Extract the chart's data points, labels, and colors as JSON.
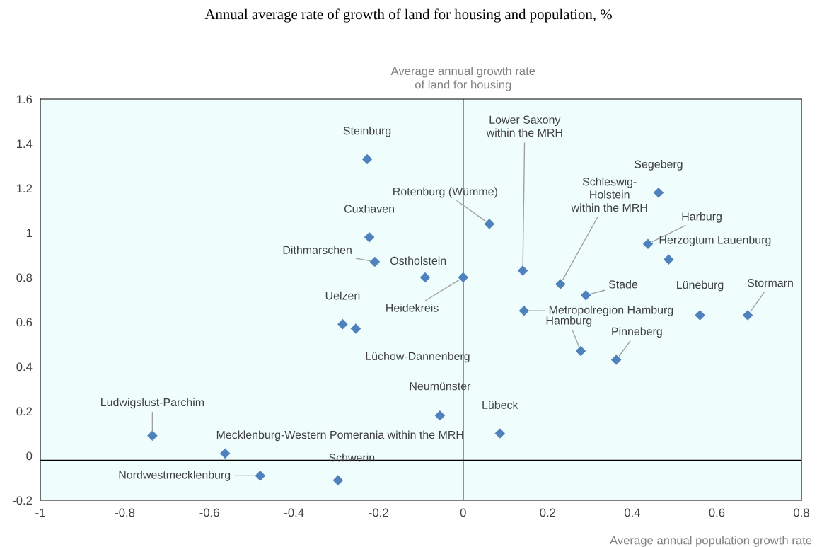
{
  "chart_data": {
    "type": "scatter",
    "title": "Annual average rate of growth of land for housing and population, %",
    "xlabel": "Average annual population growth rate",
    "ylabel": "Average annual growth rate\nof land for housing",
    "x": [
      -0.227,
      -0.222,
      -0.209,
      -0.09,
      0.0,
      0.062,
      -0.285,
      -0.254,
      0.141,
      0.23,
      0.29,
      0.144,
      0.278,
      0.362,
      0.462,
      0.437,
      0.486,
      0.56,
      0.673,
      -0.055,
      0.087,
      -0.735,
      -0.563,
      -0.48,
      -0.296
    ],
    "series": [
      {
        "color": "#4f81bd",
        "values": [
          1.33,
          0.98,
          0.87,
          0.8,
          0.8,
          1.04,
          0.59,
          0.57,
          0.83,
          0.77,
          0.72,
          0.65,
          0.47,
          0.43,
          1.18,
          0.95,
          0.88,
          0.63,
          0.63,
          0.18,
          0.1,
          0.09,
          0.01,
          -0.09,
          -0.11
        ]
      }
    ],
    "marker": "diamond",
    "annotations": [
      {
        "text": "Steinburg",
        "x": -0.227,
        "y": 1.33
      },
      {
        "text": "Cuxhaven",
        "x": -0.222,
        "y": 0.98
      },
      {
        "text": "Dithmarschen",
        "x": -0.209,
        "y": 0.87
      },
      {
        "text": "Ostholstein",
        "x": -0.09,
        "y": 0.8
      },
      {
        "text": "Heidekreis",
        "x": 0.0,
        "y": 0.8
      },
      {
        "text": "Rotenburg (Wümme)",
        "x": 0.062,
        "y": 1.04
      },
      {
        "text": "Uelzen",
        "x": -0.285,
        "y": 0.59
      },
      {
        "text": "Lüchow-Dannenberg",
        "x": -0.254,
        "y": 0.57
      },
      {
        "text": "Lower Saxony\nwithin the MRH",
        "x": 0.141,
        "y": 0.83
      },
      {
        "text": "Schleswig-\nHolstein\nwithin the MRH",
        "x": 0.23,
        "y": 0.77
      },
      {
        "text": "Stade",
        "x": 0.29,
        "y": 0.72
      },
      {
        "text": "Metropolregion Hamburg",
        "x": 0.144,
        "y": 0.65
      },
      {
        "text": "Hamburg",
        "x": 0.278,
        "y": 0.47
      },
      {
        "text": "Pinneberg",
        "x": 0.362,
        "y": 0.43
      },
      {
        "text": "Segeberg",
        "x": 0.462,
        "y": 1.18
      },
      {
        "text": "Harburg",
        "x": 0.437,
        "y": 0.95
      },
      {
        "text": "Herzogtum Lauenburg",
        "x": 0.486,
        "y": 0.88
      },
      {
        "text": "Lüneburg",
        "x": 0.56,
        "y": 0.63
      },
      {
        "text": "Stormarn",
        "x": 0.673,
        "y": 0.63
      },
      {
        "text": "Neumünster",
        "x": -0.055,
        "y": 0.18
      },
      {
        "text": "Lübeck",
        "x": 0.087,
        "y": 0.1
      },
      {
        "text": "Ludwigslust-Parchim",
        "x": -0.735,
        "y": 0.09
      },
      {
        "text": "Mecklenburg-Western Pomerania within the MRH",
        "x": -0.563,
        "y": 0.01
      },
      {
        "text": "Nordwestmecklenburg",
        "x": -0.48,
        "y": -0.09
      },
      {
        "text": "Schwerin",
        "x": -0.296,
        "y": -0.11
      }
    ],
    "ref_lines": [
      {
        "axis": "x",
        "value": 0,
        "color": "#000000"
      },
      {
        "axis": "y",
        "value": -0.02,
        "color": "#000000"
      }
    ],
    "xlim": [
      -1,
      0.8
    ],
    "xticks": [
      -1,
      -0.8,
      -0.6,
      -0.4,
      -0.2,
      0,
      0.2,
      0.4,
      0.6,
      0.8
    ],
    "ylim": [
      -0.2,
      1.6
    ],
    "yticks": [
      -0.2,
      0,
      0.2,
      0.4,
      0.6,
      0.8,
      1,
      1.2,
      1.4,
      1.6
    ],
    "grid": false,
    "legend": false
  }
}
